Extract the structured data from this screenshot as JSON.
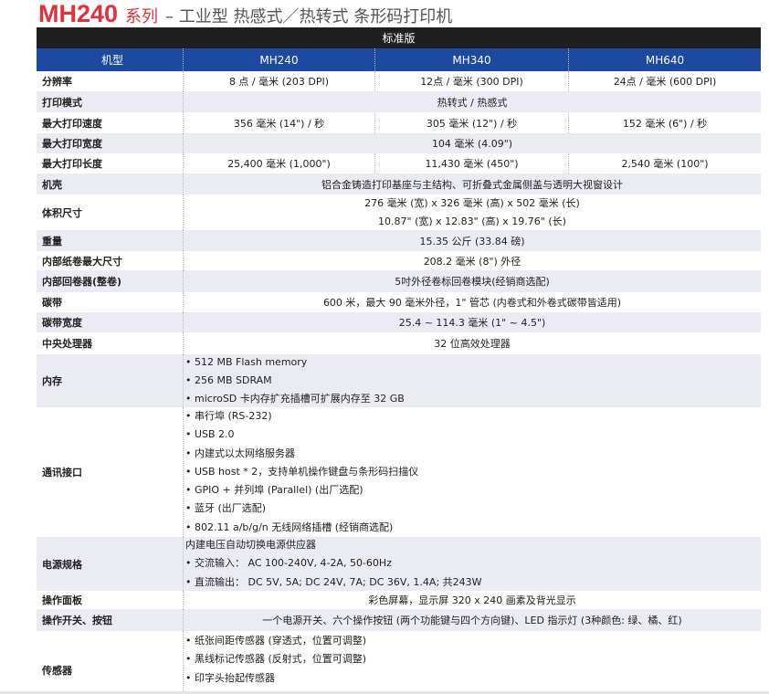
{
  "title": {
    "model": "MH240",
    "series": "系列",
    "rest": "– 工业型 热感式／热转式 条形码打印机"
  },
  "edition": "标准版",
  "header": {
    "label": "机型",
    "models": [
      "MH240",
      "MH340",
      "MH640"
    ]
  },
  "colors": {
    "title_red": "#e2303c",
    "header_blue": "#1b4aa0",
    "edition_black": "#1f1f1f",
    "stripe_gray": "#ebebf4"
  },
  "rows": {
    "resolution": {
      "label": "分辨率",
      "values": [
        "8 点 / 毫米 (203 DPI)",
        "12点 / 毫米 (300 DPI)",
        "24点 / 毫米 (600 DPI)"
      ]
    },
    "print_mode": {
      "label": "打印模式",
      "value": "热转式 / 热感式"
    },
    "max_speed": {
      "label": "最大打印速度",
      "values": [
        "356 毫米 (14\") / 秒",
        "305 毫米 (12\") / 秒",
        "152 毫米 (6\") / 秒"
      ]
    },
    "max_width": {
      "label": "最大打印宽度",
      "value": "104 毫米 (4.09\")"
    },
    "max_length": {
      "label": "最大打印长度",
      "values": [
        "25,400 毫米 (1,000\")",
        "11,430 毫米 (450\")",
        "2,540 毫米 (100\")"
      ]
    },
    "housing": {
      "label": "机壳",
      "value": "铝合金铸造打印基座与主结构、可折叠式金属侧盖与透明大视窗设计"
    },
    "dimensions": {
      "label": "体积尺寸",
      "lines": [
        "276 毫米 (宽) x 326 毫米 (高) x 502 毫米 (长)",
        "10.87\" (宽) x 12.83\" (高) x 19.76\" (长)"
      ]
    },
    "weight": {
      "label": "重量",
      "value": "15.35 公斤 (33.84 磅)"
    },
    "roll": {
      "label": "内部纸卷最大尺寸",
      "value": "208.2 毫米 (8\") 外径"
    },
    "rewinder": {
      "label": "内部回卷器(整卷)",
      "value": "5吋外径卷标回卷模块(经销商选配)"
    },
    "ribbon": {
      "label": "碳带",
      "value": "600 米，最大 90 毫米外径，1\" 管芯 (内卷式和外卷式碳带皆适用)"
    },
    "ribbon_width": {
      "label": "碳带宽度",
      "value": "25.4 ~ 114.3 毫米 (1\" ~ 4.5\")"
    },
    "cpu": {
      "label": "中央处理器",
      "value": "32 位高效处理器"
    },
    "memory": {
      "label": "内存",
      "items": [
        "• 512 MB Flash memory",
        "• 256 MB SDRAM",
        "• microSD 卡内存扩充插槽可扩展内存至 32 GB"
      ]
    },
    "interfaces": {
      "label": "通讯接口",
      "items": [
        "• 串行埠 (RS-232)",
        "• USB 2.0",
        "• 内建式以太网络服务器",
        "• USB host * 2，支持单机操作键盘与条形码扫描仪",
        "• GPIO + 并列埠 (Parallel) (出厂选配)",
        "• 蓝牙 (出厂选配)",
        "• 802.11 a/b/g/n 无线网络插槽 (经销商选配)"
      ]
    },
    "power": {
      "label": "电源规格",
      "items": [
        "内建电压自动切换电源供应器",
        "• 交流输入： AC 100-240V, 4-2A, 50-60Hz",
        "• 直流输出： DC 5V, 5A; DC 24V, 7A; DC 36V, 1.4A; 共243W"
      ]
    },
    "panel": {
      "label": "操作面板",
      "value": "彩色屏幕，显示屏 320 x 240 画素及背光显示"
    },
    "switches": {
      "label": "操作开关、按钮",
      "value": "一个电源开关、六个操作按钮 (两个功能键与四个方向键)、LED 指示灯 (3种颜色: 绿、橘、红)"
    },
    "sensors": {
      "label": "传感器",
      "items": [
        "• 纸张间距传感器 (穿透式，位置可调整)",
        "• 黑线标记传感器 (反射式，位置可调整)",
        "• 印字头抬起传感器"
      ]
    }
  }
}
